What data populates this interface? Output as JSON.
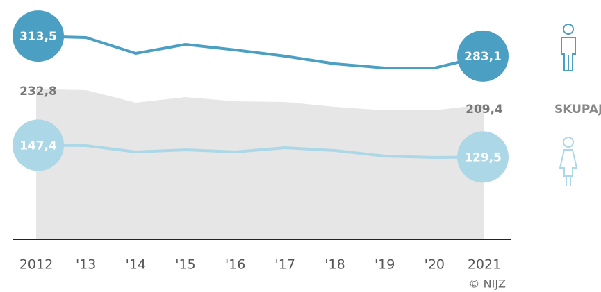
{
  "chart_data": {
    "type": "line",
    "categories": [
      "2012",
      "'13",
      "'14",
      "'15",
      "'16",
      "'17",
      "'18",
      "'19",
      "'20",
      "2021"
    ],
    "series": [
      {
        "color": "#4a9fc2",
        "values": [
          313.5,
          311.5,
          287.2,
          300.9,
          292.5,
          283.0,
          271.4,
          265.0,
          265.0,
          283.1
        ],
        "value_labels": [
          "313,5",
          null,
          null,
          null,
          null,
          null,
          null,
          null,
          null,
          "283,1"
        ]
      },
      {
        "name": "SKUPAJ",
        "color": "#e6e6e6",
        "area": true,
        "values": [
          232.8,
          231.3,
          212.2,
          220.7,
          214.4,
          213.3,
          205.9,
          200.6,
          200.6,
          209.4
        ],
        "value_labels": [
          "232,8",
          null,
          null,
          null,
          null,
          null,
          null,
          null,
          null,
          "209,4"
        ]
      },
      {
        "color": "#acd7e6",
        "values": [
          147.4,
          146.8,
          137.3,
          140.4,
          137.3,
          143.6,
          139.4,
          130.9,
          128.8,
          129.5
        ],
        "value_labels": [
          "147,4",
          null,
          null,
          null,
          null,
          null,
          null,
          null,
          null,
          "129,5"
        ]
      }
    ],
    "ylim": [
      0,
      340
    ],
    "source": "© NIJZ"
  }
}
